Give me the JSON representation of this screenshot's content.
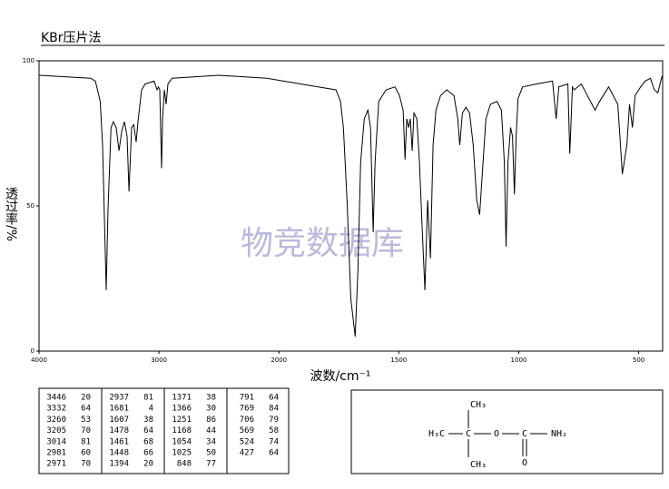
{
  "chart_data": {
    "type": "line",
    "title": "KBr压片法",
    "xlabel": "波数/cm⁻¹",
    "ylabel": "透过率/%",
    "watermark": "物竞数据库",
    "color": "#000000",
    "xlim": [
      4000,
      400
    ],
    "xscale": {
      "break": 2000,
      "ratio": 2
    },
    "xticks": [
      4000,
      3000,
      2000,
      1500,
      1000,
      500
    ],
    "ylim": [
      0,
      100
    ],
    "yticks": [
      0,
      50,
      100
    ],
    "x": [
      4000,
      3570,
      3530,
      3490,
      3470,
      3440,
      3425,
      3400,
      3380,
      3357,
      3333,
      3310,
      3288,
      3266,
      3250,
      3228,
      3210,
      3190,
      3175,
      3145,
      3115,
      3040,
      3016,
      3005,
      2993,
      2978,
      2970,
      2955,
      2940,
      2925,
      2890,
      2500,
      2100,
      1837,
      1762,
      1743,
      1731,
      1716,
      1700,
      1682,
      1671,
      1659,
      1644,
      1629,
      1618,
      1607,
      1599,
      1584,
      1553,
      1516,
      1497,
      1482,
      1474,
      1467,
      1459,
      1452,
      1444,
      1437,
      1425,
      1414,
      1403,
      1391,
      1380,
      1368,
      1357,
      1345,
      1326,
      1300,
      1270,
      1254,
      1246,
      1235,
      1220,
      1205,
      1190,
      1175,
      1163,
      1152,
      1137,
      1118,
      1091,
      1072,
      1060,
      1053,
      1045,
      1034,
      1026,
      1018,
      1011,
      1003,
      984,
      927,
      859,
      844,
      833,
      795,
      787,
      776,
      769,
      739,
      701,
      682,
      663,
      625,
      587,
      568,
      549,
      538,
      526,
      515,
      492,
      473,
      451,
      435,
      420,
      405,
      400
    ],
    "values": [
      95,
      94,
      93,
      86,
      71,
      21,
      49,
      77,
      79,
      77,
      69,
      76,
      79,
      74,
      55,
      77,
      78,
      72,
      79,
      90,
      92,
      93,
      90,
      91,
      90,
      63,
      80,
      90,
      85,
      92,
      94,
      95,
      94,
      91,
      90,
      86,
      77,
      52,
      18,
      5,
      27,
      65,
      80,
      83,
      77,
      41,
      65,
      86,
      90,
      91,
      88,
      83,
      66,
      80,
      77,
      80,
      69,
      82,
      80,
      65,
      43,
      21,
      52,
      32,
      71,
      83,
      88,
      90,
      88,
      80,
      71,
      82,
      84,
      82,
      71,
      52,
      47,
      61,
      80,
      85,
      86,
      83,
      65,
      36,
      65,
      77,
      74,
      54,
      74,
      87,
      91,
      92,
      93,
      80,
      91,
      92,
      68,
      91,
      90,
      92,
      86,
      83,
      86,
      91,
      85,
      61,
      71,
      85,
      77,
      88,
      91,
      93,
      94,
      90,
      89,
      94,
      95
    ]
  },
  "peaks": [
    [
      3446,
      20
    ],
    [
      3332,
      64
    ],
    [
      3260,
      53
    ],
    [
      3205,
      70
    ],
    [
      3014,
      81
    ],
    [
      2981,
      60
    ],
    [
      2971,
      70
    ],
    [
      2937,
      81
    ],
    [
      1681,
      4
    ],
    [
      1607,
      38
    ],
    [
      1478,
      64
    ],
    [
      1461,
      68
    ],
    [
      1448,
      66
    ],
    [
      1394,
      20
    ],
    [
      1371,
      38
    ],
    [
      1366,
      30
    ],
    [
      1251,
      86
    ],
    [
      1168,
      44
    ],
    [
      1054,
      34
    ],
    [
      1025,
      50
    ],
    [
      848,
      77
    ],
    [
      791,
      64
    ],
    [
      769,
      84
    ],
    [
      706,
      79
    ],
    [
      569,
      58
    ],
    [
      524,
      74
    ],
    [
      427,
      64
    ]
  ],
  "structure": {
    "top": "CH₃",
    "left": "H₃C",
    "center": "C",
    "ether": "O",
    "carbonyl": "C",
    "amine": "NH₂",
    "oxo": "O",
    "bottom": "CH₃"
  }
}
